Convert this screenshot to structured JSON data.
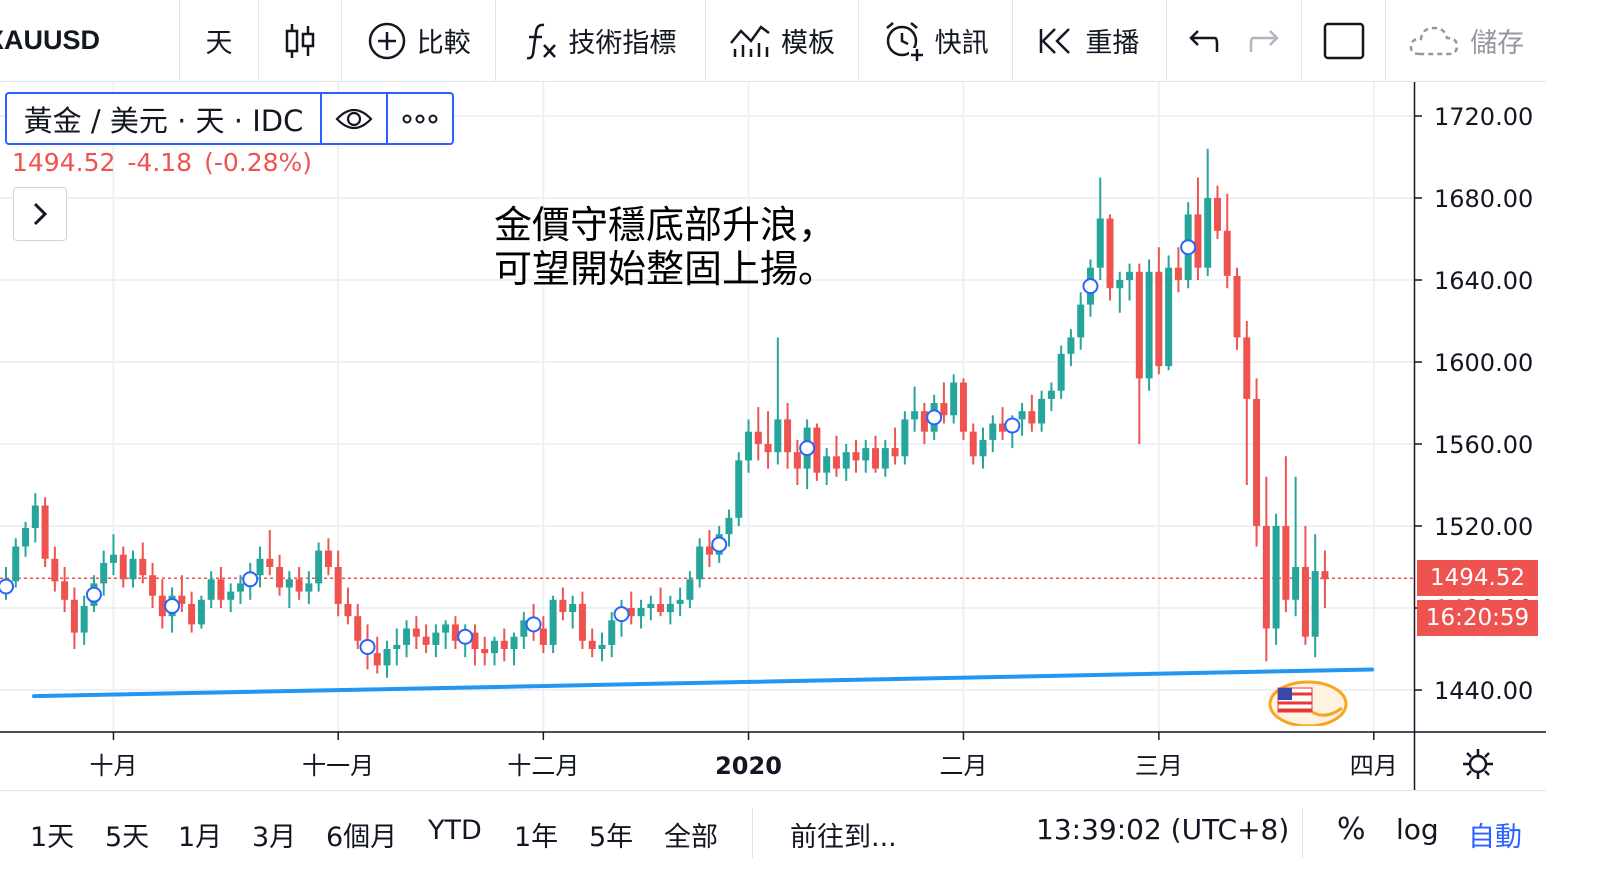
{
  "toolbar": {
    "symbol": "XAUUSD",
    "interval": "天",
    "compare": "比較",
    "indicators": "技術指標",
    "templates": "模板",
    "alert": "快訊",
    "replay": "重播",
    "save": "儲存"
  },
  "legend": {
    "title": "黃金 / 美元 · 天 · IDC",
    "last": "1494.52",
    "change": "-4.18",
    "change_pct": "(-0.28%)"
  },
  "annotation": "金價守穩底部升浪，\n可望開始整固上揚。",
  "price_axis": {
    "current_price": "1494.52",
    "countdown": "16:20:59"
  },
  "bottom_bar": {
    "ranges": [
      "1天",
      "5天",
      "1月",
      "3月",
      "6個月",
      "YTD",
      "1年",
      "5年",
      "全部"
    ],
    "goto": "前往到...",
    "clock": "13:39:02 (UTC+8)",
    "percent": "%",
    "log": "log",
    "auto": "自動"
  },
  "colors": {
    "up": "#26a69a",
    "down": "#ef5350",
    "trendline": "#2196f3",
    "accent": "#2962ff"
  },
  "chart_data": {
    "type": "candlestick",
    "title": "黃金 / 美元 · 天 · IDC",
    "ylim": [
      1420,
      1735
    ],
    "y_ticks": [
      "1440.00",
      "1480.00",
      "1520.00",
      "1560.00",
      "1600.00",
      "1640.00",
      "1680.00",
      "1720.00"
    ],
    "x_ticks": [
      {
        "label": "十月",
        "index": 11,
        "bold": false
      },
      {
        "label": "十一月",
        "index": 34,
        "bold": false
      },
      {
        "label": "十二月",
        "index": 55,
        "bold": false
      },
      {
        "label": "2020",
        "index": 76,
        "bold": true
      },
      {
        "label": "二月",
        "index": 98,
        "bold": false
      },
      {
        "label": "三月",
        "index": 118,
        "bold": false
      },
      {
        "label": "四月",
        "index": 140,
        "bold": false
      }
    ],
    "candles": [
      [
        1488,
        1500,
        1484,
        1493
      ],
      [
        1493,
        1514,
        1490,
        1510
      ],
      [
        1510,
        1522,
        1505,
        1519
      ],
      [
        1519,
        1536,
        1512,
        1530
      ],
      [
        1530,
        1534,
        1500,
        1504
      ],
      [
        1504,
        1510,
        1488,
        1493
      ],
      [
        1493,
        1500,
        1478,
        1484
      ],
      [
        1484,
        1490,
        1460,
        1468
      ],
      [
        1468,
        1486,
        1462,
        1481
      ],
      [
        1481,
        1496,
        1478,
        1492
      ],
      [
        1492,
        1508,
        1486,
        1502
      ],
      [
        1502,
        1516,
        1496,
        1506
      ],
      [
        1506,
        1510,
        1490,
        1494
      ],
      [
        1494,
        1508,
        1490,
        1504
      ],
      [
        1504,
        1512,
        1492,
        1496
      ],
      [
        1496,
        1502,
        1480,
        1486
      ],
      [
        1486,
        1494,
        1470,
        1476
      ],
      [
        1476,
        1490,
        1468,
        1486
      ],
      [
        1486,
        1496,
        1478,
        1482
      ],
      [
        1482,
        1488,
        1468,
        1472
      ],
      [
        1472,
        1486,
        1470,
        1484
      ],
      [
        1484,
        1498,
        1480,
        1494
      ],
      [
        1494,
        1500,
        1480,
        1484
      ],
      [
        1484,
        1492,
        1478,
        1488
      ],
      [
        1488,
        1496,
        1482,
        1492
      ],
      [
        1492,
        1502,
        1484,
        1496
      ],
      [
        1496,
        1510,
        1490,
        1504
      ],
      [
        1504,
        1518,
        1496,
        1500
      ],
      [
        1500,
        1506,
        1486,
        1490
      ],
      [
        1490,
        1498,
        1480,
        1494
      ],
      [
        1494,
        1500,
        1484,
        1488
      ],
      [
        1488,
        1498,
        1482,
        1492
      ],
      [
        1492,
        1512,
        1488,
        1508
      ],
      [
        1508,
        1514,
        1496,
        1500
      ],
      [
        1500,
        1508,
        1476,
        1482
      ],
      [
        1482,
        1490,
        1472,
        1476
      ],
      [
        1476,
        1482,
        1460,
        1464
      ],
      [
        1464,
        1472,
        1450,
        1458
      ],
      [
        1458,
        1466,
        1448,
        1452
      ],
      [
        1452,
        1464,
        1446,
        1460
      ],
      [
        1460,
        1470,
        1452,
        1462
      ],
      [
        1462,
        1474,
        1456,
        1470
      ],
      [
        1470,
        1476,
        1460,
        1466
      ],
      [
        1466,
        1472,
        1458,
        1462
      ],
      [
        1462,
        1472,
        1456,
        1468
      ],
      [
        1468,
        1474,
        1460,
        1472
      ],
      [
        1472,
        1476,
        1460,
        1464
      ],
      [
        1464,
        1472,
        1456,
        1468
      ],
      [
        1468,
        1472,
        1452,
        1460
      ],
      [
        1460,
        1466,
        1452,
        1458
      ],
      [
        1458,
        1466,
        1452,
        1464
      ],
      [
        1464,
        1470,
        1454,
        1460
      ],
      [
        1460,
        1468,
        1452,
        1466
      ],
      [
        1466,
        1478,
        1460,
        1474
      ],
      [
        1474,
        1482,
        1464,
        1470
      ],
      [
        1470,
        1476,
        1458,
        1462
      ],
      [
        1462,
        1486,
        1458,
        1484
      ],
      [
        1484,
        1490,
        1474,
        1478
      ],
      [
        1478,
        1486,
        1470,
        1482
      ],
      [
        1482,
        1488,
        1460,
        1464
      ],
      [
        1464,
        1470,
        1456,
        1460
      ],
      [
        1460,
        1468,
        1454,
        1462
      ],
      [
        1462,
        1478,
        1456,
        1474
      ],
      [
        1474,
        1484,
        1466,
        1480
      ],
      [
        1480,
        1488,
        1472,
        1476
      ],
      [
        1476,
        1484,
        1470,
        1480
      ],
      [
        1480,
        1486,
        1474,
        1482
      ],
      [
        1482,
        1490,
        1476,
        1478
      ],
      [
        1478,
        1486,
        1472,
        1482
      ],
      [
        1482,
        1490,
        1476,
        1484
      ],
      [
        1484,
        1498,
        1480,
        1494
      ],
      [
        1494,
        1514,
        1490,
        1510
      ],
      [
        1510,
        1518,
        1500,
        1506
      ],
      [
        1506,
        1520,
        1502,
        1516
      ],
      [
        1516,
        1528,
        1510,
        1524
      ],
      [
        1524,
        1556,
        1520,
        1552
      ],
      [
        1552,
        1572,
        1546,
        1566
      ],
      [
        1566,
        1578,
        1552,
        1560
      ],
      [
        1560,
        1576,
        1548,
        1556
      ],
      [
        1556,
        1612,
        1550,
        1572
      ],
      [
        1572,
        1580,
        1548,
        1556
      ],
      [
        1556,
        1562,
        1540,
        1548
      ],
      [
        1548,
        1572,
        1538,
        1568
      ],
      [
        1568,
        1570,
        1542,
        1546
      ],
      [
        1546,
        1558,
        1540,
        1554
      ],
      [
        1554,
        1564,
        1544,
        1548
      ],
      [
        1548,
        1560,
        1542,
        1556
      ],
      [
        1556,
        1562,
        1546,
        1552
      ],
      [
        1552,
        1562,
        1546,
        1558
      ],
      [
        1558,
        1564,
        1546,
        1548
      ],
      [
        1548,
        1562,
        1544,
        1558
      ],
      [
        1558,
        1568,
        1550,
        1554
      ],
      [
        1554,
        1576,
        1550,
        1572
      ],
      [
        1572,
        1588,
        1566,
        1576
      ],
      [
        1576,
        1580,
        1560,
        1566
      ],
      [
        1566,
        1584,
        1562,
        1580
      ],
      [
        1580,
        1590,
        1570,
        1574
      ],
      [
        1574,
        1594,
        1570,
        1590
      ],
      [
        1590,
        1592,
        1562,
        1566
      ],
      [
        1566,
        1570,
        1550,
        1554
      ],
      [
        1554,
        1568,
        1548,
        1562
      ],
      [
        1562,
        1574,
        1556,
        1570
      ],
      [
        1570,
        1578,
        1562,
        1566
      ],
      [
        1566,
        1574,
        1558,
        1572
      ],
      [
        1572,
        1580,
        1564,
        1576
      ],
      [
        1576,
        1584,
        1566,
        1570
      ],
      [
        1570,
        1586,
        1566,
        1582
      ],
      [
        1582,
        1590,
        1576,
        1586
      ],
      [
        1586,
        1608,
        1582,
        1604
      ],
      [
        1604,
        1616,
        1598,
        1612
      ],
      [
        1612,
        1634,
        1606,
        1628
      ],
      [
        1628,
        1650,
        1622,
        1646
      ],
      [
        1646,
        1690,
        1640,
        1670
      ],
      [
        1670,
        1672,
        1630,
        1636
      ],
      [
        1636,
        1644,
        1624,
        1640
      ],
      [
        1640,
        1648,
        1630,
        1644
      ],
      [
        1644,
        1648,
        1560,
        1592
      ],
      [
        1592,
        1650,
        1586,
        1644
      ],
      [
        1644,
        1656,
        1594,
        1598
      ],
      [
        1598,
        1652,
        1596,
        1646
      ],
      [
        1646,
        1656,
        1634,
        1640
      ],
      [
        1640,
        1678,
        1636,
        1672
      ],
      [
        1672,
        1690,
        1640,
        1646
      ],
      [
        1646,
        1704,
        1642,
        1680
      ],
      [
        1680,
        1686,
        1660,
        1664
      ],
      [
        1664,
        1682,
        1636,
        1642
      ],
      [
        1642,
        1646,
        1606,
        1612
      ],
      [
        1612,
        1620,
        1540,
        1582
      ],
      [
        1582,
        1592,
        1510,
        1520
      ],
      [
        1520,
        1544,
        1454,
        1470
      ],
      [
        1470,
        1526,
        1462,
        1520
      ],
      [
        1520,
        1554,
        1478,
        1484
      ],
      [
        1484,
        1544,
        1476,
        1500
      ],
      [
        1500,
        1520,
        1462,
        1466
      ],
      [
        1466,
        1516,
        1456,
        1498
      ],
      [
        1498,
        1508,
        1480,
        1494
      ]
    ],
    "markers": [
      0,
      9,
      17,
      25,
      37,
      47,
      54,
      63,
      73,
      82,
      95,
      103,
      111,
      121
    ],
    "price_line": 1494.52,
    "trendline": [
      [
        0,
        1437
      ],
      [
        139,
        1450
      ]
    ]
  }
}
